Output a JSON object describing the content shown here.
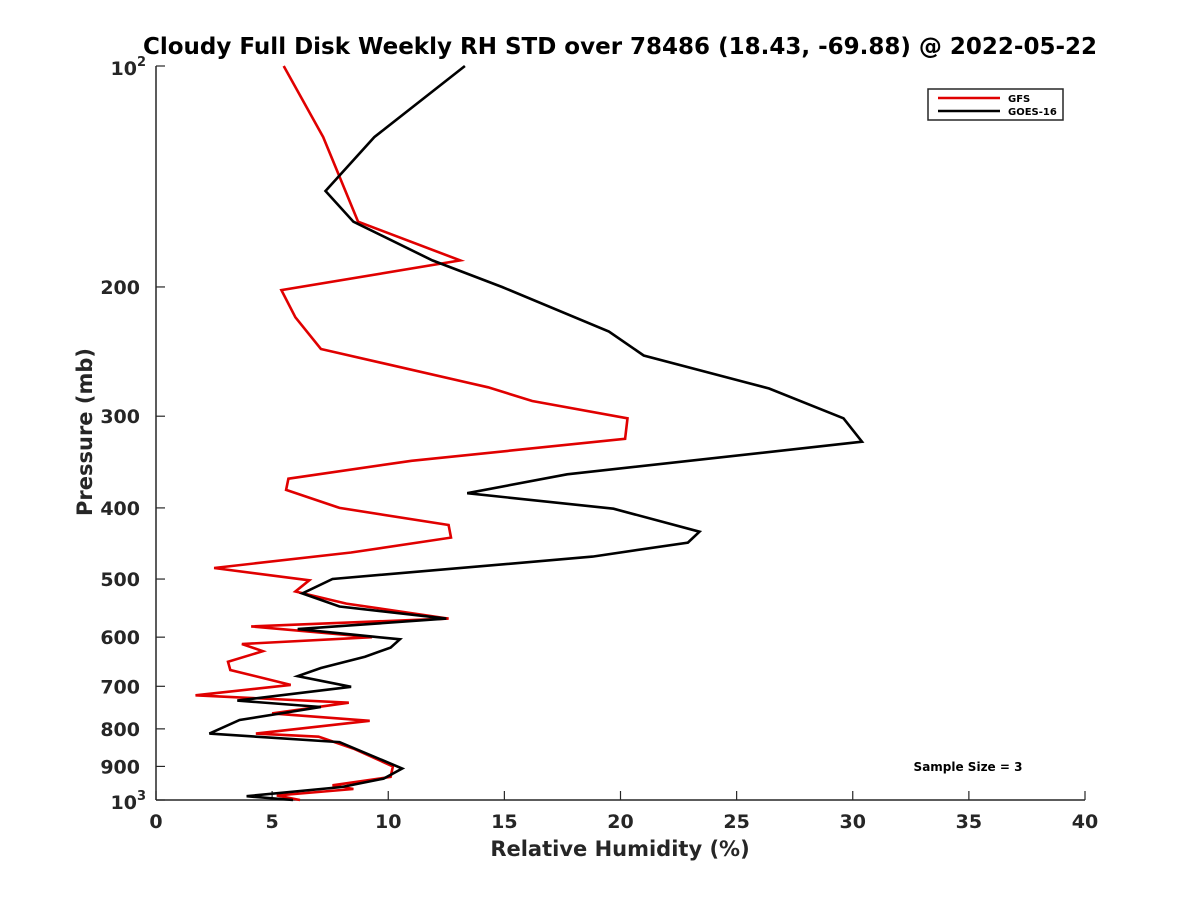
{
  "chart_data": {
    "type": "line",
    "title": "Cloudy Full Disk Weekly RH STD over 78486 (18.43, -69.88) @ 2022-05-22",
    "xlabel": "Relative Humidity (%)",
    "ylabel": "Pressure (mb)",
    "xlim": [
      0,
      40
    ],
    "ylim": [
      100,
      1000
    ],
    "y_scale": "log",
    "y_reversed": true,
    "x_ticks": [
      0,
      5,
      10,
      15,
      20,
      25,
      30,
      35,
      40
    ],
    "x_tick_labels": [
      "0",
      "5",
      "10",
      "15",
      "20",
      "25",
      "30",
      "35",
      "40"
    ],
    "y_ticks": [
      {
        "value": 100,
        "label": "10",
        "exp": "2"
      },
      {
        "value": 200,
        "label": "200",
        "exp": ""
      },
      {
        "value": 300,
        "label": "300",
        "exp": ""
      },
      {
        "value": 400,
        "label": "400",
        "exp": ""
      },
      {
        "value": 500,
        "label": "500",
        "exp": ""
      },
      {
        "value": 600,
        "label": "600",
        "exp": ""
      },
      {
        "value": 700,
        "label": "700",
        "exp": ""
      },
      {
        "value": 800,
        "label": "800",
        "exp": ""
      },
      {
        "value": 900,
        "label": "900",
        "exp": ""
      },
      {
        "value": 1000,
        "label": "10",
        "exp": "3"
      }
    ],
    "grid": false,
    "legend_position": "top-right",
    "series": [
      {
        "name": "GFS",
        "color": "#e00000",
        "points": [
          [
            5.5,
            100
          ],
          [
            7.2,
            125
          ],
          [
            8.7,
            163
          ],
          [
            13.1,
            184
          ],
          [
            5.4,
            202
          ],
          [
            6.0,
            220
          ],
          [
            7.1,
            243
          ],
          [
            14.3,
            274
          ],
          [
            16.2,
            286
          ],
          [
            20.3,
            302
          ],
          [
            20.2,
            322
          ],
          [
            11.0,
            345
          ],
          [
            5.7,
            365
          ],
          [
            5.6,
            378
          ],
          [
            7.9,
            400
          ],
          [
            12.6,
            422
          ],
          [
            12.7,
            439
          ],
          [
            8.4,
            460
          ],
          [
            2.5,
            483
          ],
          [
            6.6,
            502
          ],
          [
            6.0,
            520
          ],
          [
            8.2,
            540
          ],
          [
            12.6,
            566
          ],
          [
            4.1,
            580
          ],
          [
            9.3,
            600
          ],
          [
            3.7,
            613
          ],
          [
            4.6,
            627
          ],
          [
            3.1,
            648
          ],
          [
            3.2,
            665
          ],
          [
            5.8,
            697
          ],
          [
            1.7,
            720
          ],
          [
            8.3,
            737
          ],
          [
            5.0,
            762
          ],
          [
            9.2,
            780
          ],
          [
            4.3,
            812
          ],
          [
            7.0,
            820
          ],
          [
            8.5,
            851
          ],
          [
            10.2,
            900
          ],
          [
            10.1,
            930
          ],
          [
            7.6,
            955
          ],
          [
            8.5,
            966
          ],
          [
            5.2,
            986
          ],
          [
            6.2,
            1000
          ]
        ]
      },
      {
        "name": "GOES-16",
        "color": "#000000",
        "points": [
          [
            13.3,
            100
          ],
          [
            9.4,
            125
          ],
          [
            7.3,
            148
          ],
          [
            8.5,
            163
          ],
          [
            11.9,
            184
          ],
          [
            14.9,
            200
          ],
          [
            19.5,
            230
          ],
          [
            21.0,
            248
          ],
          [
            26.4,
            275
          ],
          [
            29.6,
            302
          ],
          [
            30.4,
            325
          ],
          [
            17.7,
            360
          ],
          [
            13.4,
            382
          ],
          [
            19.7,
            401
          ],
          [
            23.4,
            431
          ],
          [
            22.9,
            446
          ],
          [
            18.8,
            466
          ],
          [
            7.6,
            500
          ],
          [
            6.3,
            523
          ],
          [
            7.9,
            545
          ],
          [
            12.5,
            566
          ],
          [
            6.1,
            585
          ],
          [
            10.5,
            604
          ],
          [
            10.1,
            620
          ],
          [
            9.0,
            638
          ],
          [
            7.1,
            661
          ],
          [
            6.1,
            678
          ],
          [
            8.4,
            701
          ],
          [
            3.5,
            732
          ],
          [
            7.1,
            747
          ],
          [
            3.6,
            778
          ],
          [
            2.3,
            812
          ],
          [
            7.9,
            834
          ],
          [
            10.6,
            906
          ],
          [
            9.8,
            935
          ],
          [
            8.0,
            960
          ],
          [
            3.9,
            988
          ],
          [
            5.9,
            1000
          ]
        ]
      }
    ],
    "annotation": "Sample Size = 3"
  }
}
